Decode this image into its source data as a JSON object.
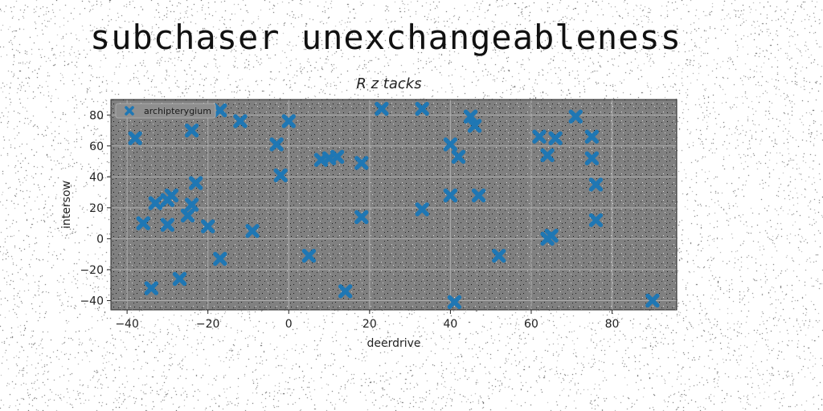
{
  "page": {
    "title": "subchaser unexchangeableness"
  },
  "chart_data": {
    "type": "scatter",
    "title": "R z tacks",
    "xlabel": "deerdrive",
    "ylabel": "intersow",
    "xlim": [
      -44,
      96
    ],
    "ylim": [
      -46,
      90
    ],
    "xticks": [
      -40,
      -20,
      0,
      20,
      40,
      60,
      80
    ],
    "yticks": [
      -40,
      -20,
      0,
      20,
      40,
      60,
      80
    ],
    "xtick_labels": [
      "−40",
      "−20",
      "0",
      "20",
      "40",
      "60",
      "80"
    ],
    "ytick_labels": [
      "−40",
      "−20",
      "0",
      "20",
      "40",
      "60",
      "80"
    ],
    "grid": true,
    "legend_position": "top-left",
    "colors": {
      "marker": "#1f77b4",
      "plot_bg": "#808080",
      "grid": "#b0b0b0"
    },
    "series": [
      {
        "name": "archipterygium",
        "marker": "x",
        "x": [
          -38,
          -36,
          -34,
          -33,
          -30,
          -30,
          -29,
          -27,
          -25,
          -24,
          -24,
          -23,
          -20,
          -17,
          -17,
          -12,
          -9,
          -3,
          -2,
          0,
          5,
          8,
          10,
          12,
          14,
          18,
          18,
          23,
          33,
          33,
          40,
          40,
          41,
          42,
          45,
          46,
          47,
          52,
          62,
          64,
          64,
          65,
          66,
          71,
          75,
          75,
          76,
          76,
          90
        ],
        "y": [
          65,
          10,
          -32,
          23,
          25,
          9,
          28,
          -26,
          15,
          22,
          70,
          36,
          8,
          -13,
          83,
          76,
          5,
          61,
          41,
          76,
          -11,
          51,
          52,
          53,
          -34,
          49,
          14,
          84,
          84,
          19,
          61,
          28,
          -41,
          53,
          79,
          73,
          28,
          -11,
          66,
          54,
          0,
          2,
          65,
          79,
          66,
          52,
          35,
          12,
          -40
        ]
      }
    ]
  }
}
